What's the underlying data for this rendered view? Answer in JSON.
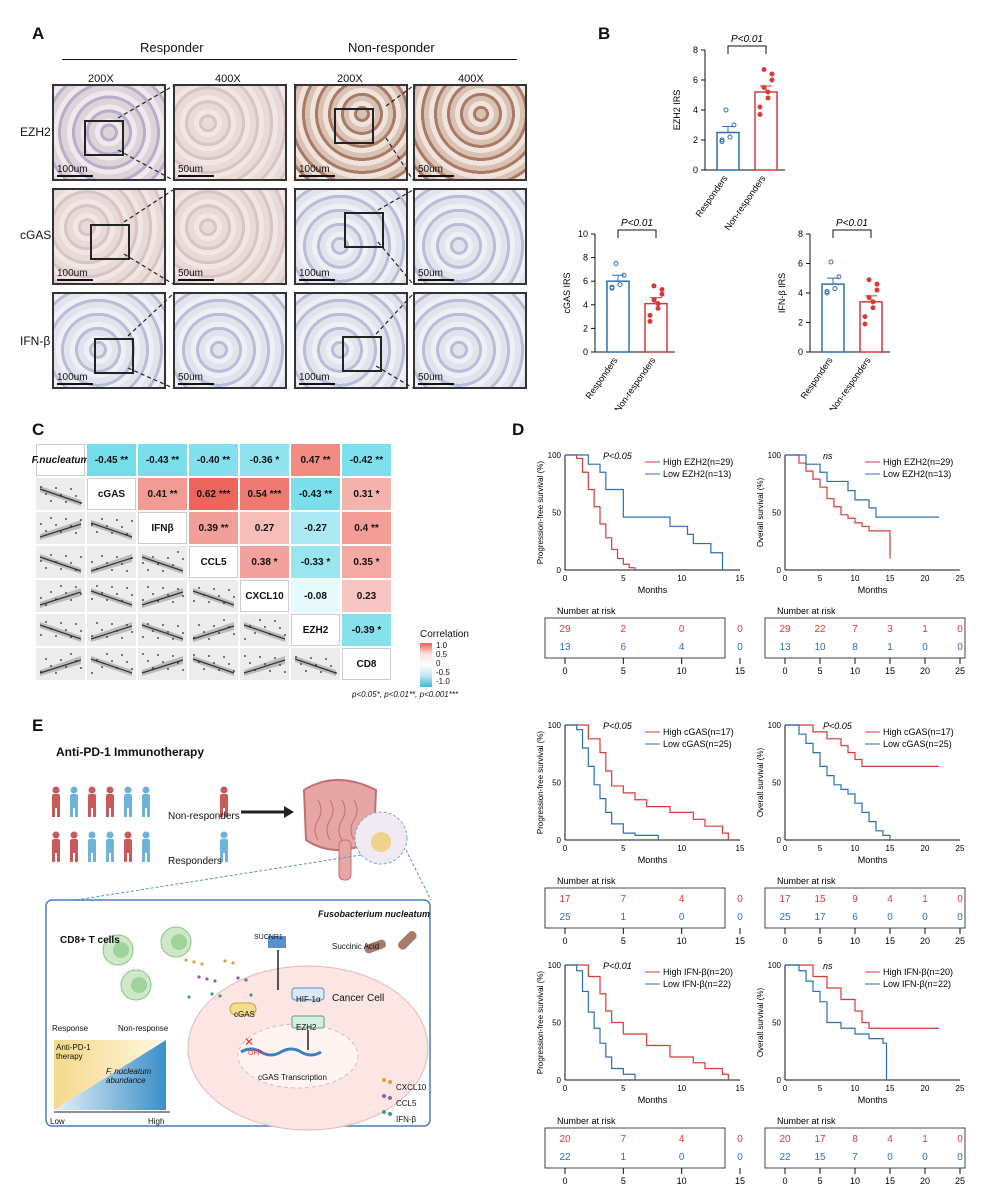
{
  "panels": {
    "a": "A",
    "b": "B",
    "c": "C",
    "d": "D",
    "e": "E"
  },
  "panel_a": {
    "groups": [
      "Responder",
      "Non-responder"
    ],
    "magnifications": [
      "200X",
      "400X",
      "200X",
      "400X"
    ],
    "rows": [
      "EZH2",
      "cGAS",
      "IFN-β"
    ],
    "scale_200": "100um",
    "scale_400": "50um"
  },
  "panel_b": {
    "p_label": "P<0.01",
    "x_categories": [
      "Responders",
      "Non-responders"
    ]
  },
  "panel_c": {
    "variables": [
      "F.nucleatum",
      "cGAS",
      "IFNβ",
      "CCL5",
      "CXCL10",
      "EZH2",
      "CD8"
    ],
    "cells": [
      [
        "-0.45 **",
        "-0.43 **",
        "-0.40 **",
        "-0.36 *",
        "0.47 **",
        "-0.42 **"
      ],
      [
        "0.41 **",
        "0.62 ***",
        "0.54 ***",
        "-0.43 **",
        "0.31 *"
      ],
      [
        "0.39 **",
        "0.27",
        "-0.27",
        "0.4 **"
      ],
      [
        "0.38 *",
        "-0.33 *",
        "0.35 *"
      ],
      [
        "-0.08",
        "0.23"
      ],
      [
        "-0.39 *"
      ]
    ],
    "legend_title": "Correlation",
    "legend_ticks": [
      "1.0",
      "0.5",
      "0",
      "-0.5",
      "-1.0"
    ],
    "footnote": "p<0.05*, p<0.01**, p<0.001***"
  },
  "panel_d": {
    "months": "Months",
    "number_at_risk": "Number at risk",
    "x_ticks_15": [
      "0",
      "5",
      "10",
      "15"
    ],
    "x_ticks_25": [
      "0",
      "5",
      "10",
      "15",
      "20",
      "25"
    ],
    "rows": [
      {
        "pfs_p": "P<0.05",
        "os_p": "ns",
        "high": "High EZH2(n=29)",
        "low": "Low EZH2(n=13)",
        "pfs_high_risk": [
          "29",
          "2",
          "0",
          "0"
        ],
        "pfs_low_risk": [
          "13",
          "6",
          "4",
          "0"
        ],
        "os_high_risk": [
          "29",
          "22",
          "7",
          "3",
          "1",
          "0"
        ],
        "os_low_risk": [
          "13",
          "10",
          "8",
          "1",
          "0",
          "0"
        ]
      },
      {
        "pfs_p": "P<0.05",
        "os_p": "P<0.05",
        "high": "High cGAS(n=17)",
        "low": "Low cGAS(n=25)",
        "pfs_high_risk": [
          "17",
          "7",
          "4",
          "0"
        ],
        "pfs_low_risk": [
          "25",
          "1",
          "0",
          "0"
        ],
        "os_high_risk": [
          "17",
          "15",
          "9",
          "4",
          "1",
          "0"
        ],
        "os_low_risk": [
          "25",
          "17",
          "6",
          "0",
          "0",
          "0"
        ]
      },
      {
        "pfs_p": "P<0.01",
        "os_p": "ns",
        "high": "High IFN-β(n=20)",
        "low": "Low IFN-β(n=22)",
        "pfs_high_risk": [
          "20",
          "7",
          "4",
          "0"
        ],
        "pfs_low_risk": [
          "22",
          "1",
          "0",
          "0"
        ],
        "os_high_risk": [
          "20",
          "17",
          "8",
          "4",
          "1",
          "0"
        ],
        "os_low_risk": [
          "22",
          "15",
          "7",
          "0",
          "0",
          "0"
        ]
      }
    ]
  },
  "panel_e": {
    "title": "Anti-PD-1 Immunotherapy",
    "non_responders": "Non-responders",
    "responders": "Responders",
    "fuso": "Fusobacterium nucleatum",
    "cd8": "CD8+ T cells",
    "sucnr1": "SUCNR1",
    "succinic": "Succinic Acid",
    "cancer_cell": "Cancer Cell",
    "hif": "HIF-1α",
    "ezh2": "EZH2",
    "cgas": "cGAS",
    "off": "OFF",
    "transcription": "cGAS Transcription",
    "response": "Response",
    "non_response": "Non-response",
    "therapy": "Anti-PD-1 therapy",
    "abundance": "F. nucleatum abundance",
    "low": "Low",
    "high": "High",
    "legend": [
      "CXCL10",
      "CCL5",
      "IFN-β"
    ]
  },
  "chart_data": [
    {
      "type": "bar",
      "title": "",
      "ylabel": "EZH2 IRS",
      "categories": [
        "Responders",
        "Non-responders"
      ],
      "values": [
        2.5,
        5.2
      ],
      "ylim": [
        0,
        8
      ],
      "annotation": "P<0.01"
    },
    {
      "type": "bar",
      "title": "",
      "ylabel": "cGAS IRS",
      "categories": [
        "Responders",
        "Non-responders"
      ],
      "values": [
        6.0,
        4.1
      ],
      "ylim": [
        0,
        10
      ],
      "annotation": "P<0.01"
    },
    {
      "type": "bar",
      "title": "",
      "ylabel": "IFN-β IRS",
      "categories": [
        "Responders",
        "Non-responders"
      ],
      "values": [
        4.6,
        3.4
      ],
      "ylim": [
        0,
        8
      ],
      "annotation": "P<0.01"
    },
    {
      "type": "line",
      "ylabel": "Progression-free survival (%)",
      "xlabel": "Months",
      "xlim": [
        0,
        15
      ],
      "ylim": [
        0,
        100
      ],
      "series": [
        {
          "name": "High EZH2(n=29)",
          "x": [
            0,
            1,
            1.5,
            2,
            2.5,
            3,
            3.5,
            4,
            4.5,
            5,
            5.5,
            6
          ],
          "y": [
            100,
            97,
            85,
            70,
            55,
            40,
            28,
            18,
            10,
            5,
            2,
            0
          ]
        },
        {
          "name": "Low EZH2(n=13)",
          "x": [
            0,
            1,
            2,
            3,
            3.5,
            5,
            6,
            9,
            10.5,
            11,
            12.5,
            13.5
          ],
          "y": [
            100,
            100,
            92,
            85,
            70,
            46,
            46,
            38,
            31,
            23,
            15,
            0
          ]
        }
      ]
    },
    {
      "type": "line",
      "ylabel": "Overall survival (%)",
      "xlabel": "Months",
      "xlim": [
        0,
        25
      ],
      "ylim": [
        0,
        100
      ],
      "series": [
        {
          "name": "High EZH2(n=29)",
          "x": [
            0,
            2,
            3,
            4,
            5,
            6,
            7,
            8,
            9,
            10,
            11,
            12,
            14,
            15
          ],
          "y": [
            100,
            93,
            86,
            79,
            72,
            62,
            55,
            48,
            45,
            41,
            38,
            34,
            34,
            10
          ]
        },
        {
          "name": "Low EZH2(n=13)",
          "x": [
            0,
            2,
            3,
            5,
            6,
            7,
            9,
            10,
            12,
            13,
            14,
            22
          ],
          "y": [
            100,
            100,
            92,
            85,
            77,
            77,
            69,
            61,
            54,
            46,
            46,
            46
          ]
        }
      ]
    }
  ]
}
